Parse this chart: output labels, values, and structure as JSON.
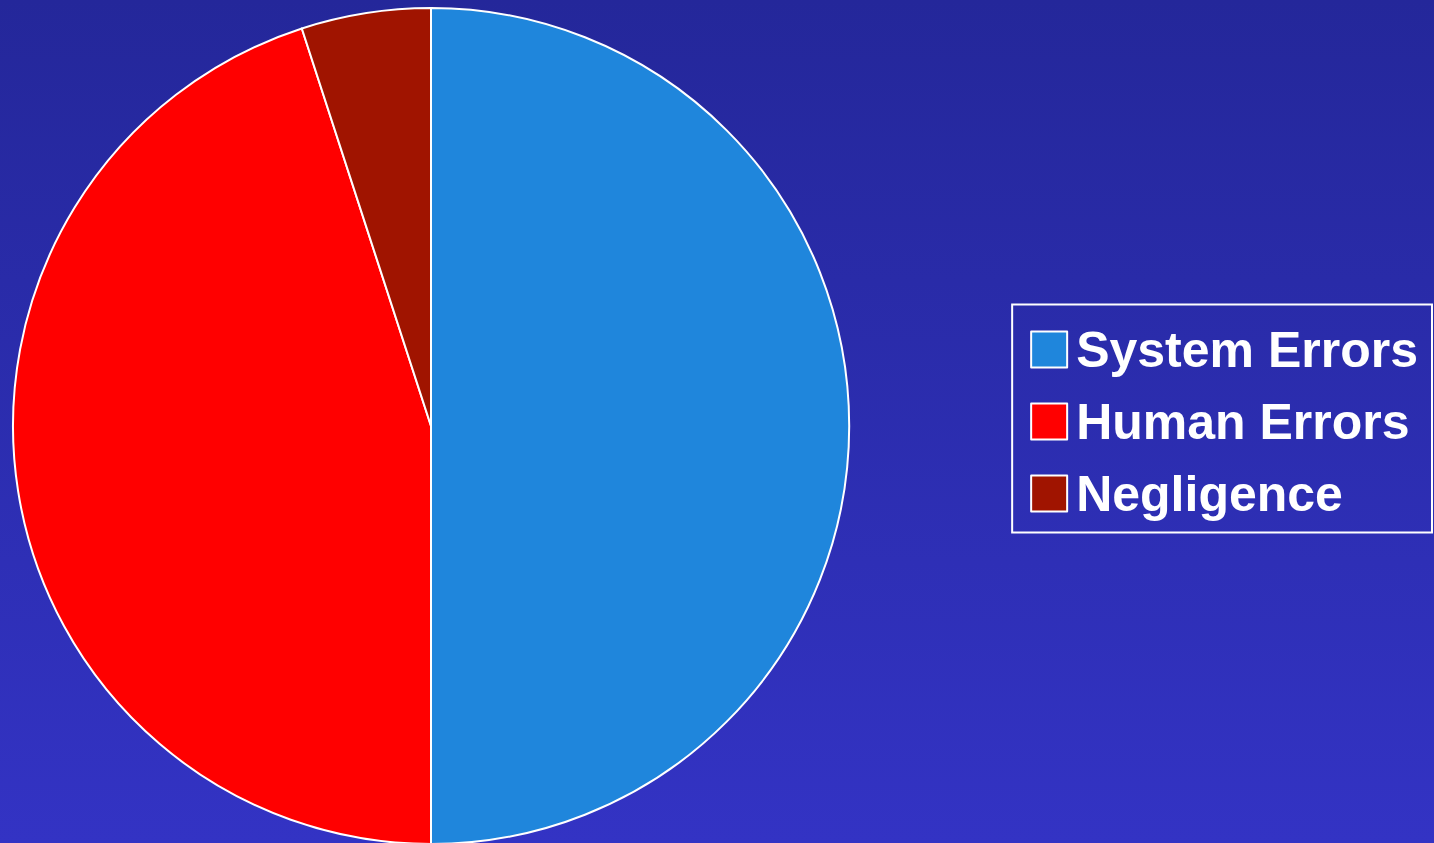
{
  "chart_data": {
    "type": "pie",
    "categories": [
      "System Errors",
      "Human Errors",
      "Negligence"
    ],
    "values": [
      50,
      45,
      5
    ],
    "colors": [
      "#1f86dc",
      "#ff0000",
      "#a01400"
    ],
    "legend": "right"
  }
}
